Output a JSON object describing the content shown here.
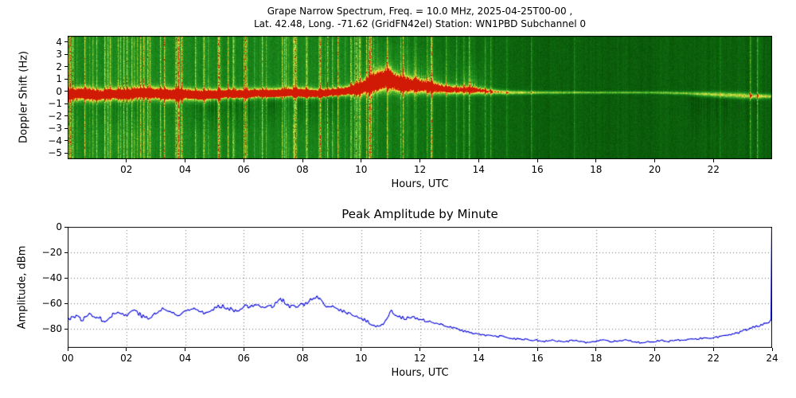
{
  "spectrogram": {
    "title_line1": "Grape Narrow Spectrum, Freq. = 10.0 MHz, 2025-04-25T00-00 ,",
    "title_line2": "Lat. 42.48, Long. -71.62 (GridFN42el) Station: WN1PBD Subchannel 0",
    "ylabel": "Doppler Shift (Hz)",
    "xlabel": "Hours, UTC"
  },
  "amplitude": {
    "title": "Peak Amplitude by Minute",
    "ylabel": "Amplitude, dBm",
    "xlabel": "Hours, UTC"
  },
  "chart_data": [
    {
      "type": "heatmap",
      "title": "Grape Narrow Spectrum, Freq. = 10.0 MHz, 2025-04-25T00-00 ,",
      "subtitle": "Lat. 42.48, Long. -71.62 (GridFN42el) Station: WN1PBD Subchannel 0",
      "xlabel": "Hours, UTC",
      "ylabel": "Doppler Shift (Hz)",
      "xlim": [
        0,
        24
      ],
      "ylim": [
        -5.5,
        4.5
      ],
      "xtick_vals": [
        2,
        4,
        6,
        8,
        10,
        12,
        14,
        16,
        18,
        20,
        22
      ],
      "xtick_labels": [
        "02",
        "04",
        "06",
        "08",
        "10",
        "12",
        "14",
        "16",
        "18",
        "20",
        "22"
      ],
      "ytick_vals": [
        4,
        3,
        2,
        1,
        0,
        -1,
        -2,
        -3,
        -4,
        -5
      ],
      "ytick_labels": [
        "4",
        "3",
        "2",
        "1",
        "0",
        "−1",
        "−2",
        "−3",
        "−4",
        "−5"
      ],
      "description": "Doppler spectrogram: green noise background with bright yellow/red carrier trace near 0 Hz; heavy vertical interference streaks 00-10 UTC, carrier broadens and lifts to ~+1 Hz around 10-12 UTC with scatter up to +3 Hz, then thins to a faint yellow line from 15 UTC onward, drifting slightly below 0 Hz toward 24 UTC.",
      "colormap": [
        [
          0.0,
          "#013001"
        ],
        [
          0.25,
          "#085108"
        ],
        [
          0.45,
          "#127512"
        ],
        [
          0.6,
          "#229222"
        ],
        [
          0.72,
          "#55b02c"
        ],
        [
          0.82,
          "#9fd23a"
        ],
        [
          0.9,
          "#e8ee52"
        ],
        [
          0.96,
          "#f0a41c"
        ],
        [
          1.0,
          "#d01a05"
        ]
      ],
      "carrier": {
        "t": [
          0,
          0.5,
          1,
          1.5,
          2,
          2.5,
          3,
          3.5,
          4,
          4.5,
          5,
          5.5,
          6,
          6.5,
          7,
          7.5,
          8,
          8.5,
          9,
          9.5,
          10,
          10.3,
          10.6,
          10.9,
          11.2,
          11.5,
          12,
          12.5,
          13,
          13.5,
          14,
          14.5,
          15,
          16,
          17,
          18,
          19,
          20,
          21,
          22,
          23,
          23.5,
          24
        ],
        "center": [
          -0.3,
          -0.2,
          -0.35,
          -0.25,
          -0.3,
          -0.15,
          -0.2,
          -0.3,
          -0.25,
          -0.35,
          -0.3,
          -0.2,
          -0.25,
          -0.15,
          -0.2,
          -0.1,
          -0.15,
          -0.2,
          -0.1,
          0.0,
          0.2,
          0.5,
          0.7,
          0.9,
          0.6,
          0.45,
          0.35,
          0.2,
          0.1,
          0.05,
          0.0,
          -0.05,
          -0.1,
          -0.1,
          -0.1,
          -0.1,
          -0.1,
          -0.1,
          -0.15,
          -0.25,
          -0.35,
          -0.4,
          -0.4
        ],
        "width": [
          0.6,
          0.7,
          0.65,
          0.6,
          0.7,
          0.6,
          0.65,
          0.7,
          0.6,
          0.65,
          0.6,
          0.55,
          0.6,
          0.5,
          0.55,
          0.5,
          0.55,
          0.5,
          0.45,
          0.5,
          0.7,
          0.9,
          1.0,
          1.1,
          0.9,
          0.8,
          0.75,
          0.6,
          0.5,
          0.45,
          0.4,
          0.3,
          0.25,
          0.18,
          0.15,
          0.13,
          0.13,
          0.14,
          0.18,
          0.3,
          0.35,
          0.3,
          0.25
        ],
        "hot": [
          0.9,
          0.95,
          0.9,
          0.85,
          0.95,
          0.9,
          0.92,
          0.9,
          0.88,
          0.9,
          0.85,
          0.8,
          0.85,
          0.8,
          0.85,
          0.8,
          0.85,
          0.8,
          0.75,
          0.8,
          0.9,
          0.95,
          1.0,
          1.0,
          0.9,
          0.85,
          0.8,
          0.7,
          0.6,
          0.5,
          0.45,
          0.35,
          0.25,
          0.18,
          0.12,
          0.1,
          0.1,
          0.1,
          0.12,
          0.2,
          0.3,
          0.3,
          0.25
        ]
      },
      "noise": {
        "t": [
          0,
          2,
          4,
          6,
          8,
          9,
          10,
          10.5,
          11,
          12,
          13,
          14,
          15,
          16,
          18,
          20,
          21.5,
          22.5,
          24
        ],
        "streaks": [
          0.85,
          0.9,
          0.95,
          0.8,
          0.85,
          0.9,
          0.95,
          0.7,
          0.8,
          0.55,
          0.45,
          0.35,
          0.15,
          0.08,
          0.06,
          0.06,
          0.12,
          0.15,
          0.1
        ],
        "bg": [
          0.52,
          0.54,
          0.53,
          0.5,
          0.52,
          0.5,
          0.48,
          0.46,
          0.48,
          0.44,
          0.42,
          0.4,
          0.36,
          0.33,
          0.32,
          0.32,
          0.33,
          0.34,
          0.33
        ]
      },
      "bursts": {
        "t": [
          9,
          9.5,
          10,
          10.4,
          10.8,
          11,
          11.4,
          11.8,
          12.2,
          12.6,
          13,
          13.4,
          13.8,
          14.1,
          14.5,
          15
        ],
        "amt": [
          0.05,
          0.15,
          0.35,
          0.5,
          0.8,
          0.65,
          0.55,
          0.7,
          0.6,
          0.4,
          0.25,
          0.3,
          0.65,
          0.3,
          0.1,
          0.02
        ]
      },
      "plumes": [
        {
          "t0": 1.5,
          "t1": 2.5,
          "strength": 0.18
        },
        {
          "t0": 4.3,
          "t1": 6.2,
          "strength": 0.3
        },
        {
          "t0": 6.8,
          "t1": 9.2,
          "strength": 0.25
        },
        {
          "t0": 21.2,
          "t1": 23.6,
          "strength": 0.18
        }
      ],
      "seed": 1337
    },
    {
      "type": "line",
      "title": "Peak Amplitude by Minute",
      "xlabel": "Hours, UTC",
      "ylabel": "Amplitude, dBm",
      "xlim": [
        0,
        24
      ],
      "ylim": [
        -95,
        0
      ],
      "xtick_vals": [
        0,
        2,
        4,
        6,
        8,
        10,
        12,
        14,
        16,
        18,
        20,
        22,
        24
      ],
      "xtick_labels": [
        "00",
        "02",
        "04",
        "06",
        "08",
        "10",
        "12",
        "14",
        "16",
        "18",
        "20",
        "22",
        "24"
      ],
      "ytick_vals": [
        0,
        -20,
        -40,
        -60,
        -80
      ],
      "ytick_labels": [
        "0",
        "−20",
        "−40",
        "−60",
        "−80"
      ],
      "grid": "dotted",
      "line_color": "#0000dd",
      "x": [
        0,
        0.25,
        0.5,
        0.75,
        1,
        1.25,
        1.5,
        1.75,
        2,
        2.25,
        2.5,
        2.75,
        3,
        3.25,
        3.5,
        3.75,
        4,
        4.25,
        4.5,
        4.75,
        5,
        5.25,
        5.5,
        5.75,
        6,
        6.25,
        6.5,
        6.75,
        7,
        7.25,
        7.5,
        7.75,
        8,
        8.25,
        8.5,
        8.75,
        9,
        9.25,
        9.5,
        9.75,
        10,
        10.25,
        10.5,
        10.75,
        11,
        11.25,
        11.5,
        11.75,
        12,
        12.25,
        12.5,
        12.75,
        13,
        13.25,
        13.5,
        13.75,
        14,
        14.25,
        14.5,
        14.75,
        15,
        15.25,
        15.5,
        15.75,
        16,
        16.25,
        16.5,
        16.75,
        17,
        17.25,
        17.5,
        17.75,
        18,
        18.25,
        18.5,
        18.75,
        19,
        19.25,
        19.5,
        19.75,
        20,
        20.25,
        20.5,
        20.75,
        21,
        21.25,
        21.5,
        21.75,
        22,
        22.25,
        22.5,
        22.75,
        23,
        23.25,
        23.5,
        23.75,
        24
      ],
      "y": [
        -72,
        -70,
        -73,
        -68,
        -71,
        -74,
        -69,
        -67,
        -70,
        -64,
        -70,
        -72,
        -68,
        -64,
        -67,
        -70,
        -66,
        -63,
        -66,
        -68,
        -64,
        -62,
        -64,
        -66,
        -62,
        -63,
        -61,
        -63,
        -62,
        -56,
        -62,
        -63,
        -61,
        -58,
        -55,
        -62,
        -63,
        -65,
        -67,
        -70,
        -72,
        -75,
        -78,
        -77,
        -66,
        -70,
        -72,
        -71,
        -73,
        -74,
        -76,
        -77,
        -78,
        -80,
        -82,
        -83,
        -84,
        -85,
        -86,
        -86,
        -87,
        -88,
        -88,
        -89,
        -89,
        -90,
        -89,
        -90,
        -90,
        -89,
        -90,
        -91,
        -90,
        -89,
        -90,
        -90,
        -89,
        -90,
        -91,
        -90,
        -90,
        -89,
        -90,
        -89,
        -89,
        -88,
        -88,
        -87,
        -87,
        -86,
        -85,
        -84,
        -82,
        -80,
        -78,
        -76,
        -73
      ],
      "end_spike": {
        "x": 24,
        "y": -3
      },
      "jitter": {
        "t": [
          0,
          9,
          10,
          14,
          16,
          21,
          23,
          24
        ],
        "amp": [
          2.6,
          2.6,
          2.2,
          1.4,
          1.0,
          1.0,
          1.4,
          1.8
        ]
      },
      "seed": 77
    }
  ]
}
